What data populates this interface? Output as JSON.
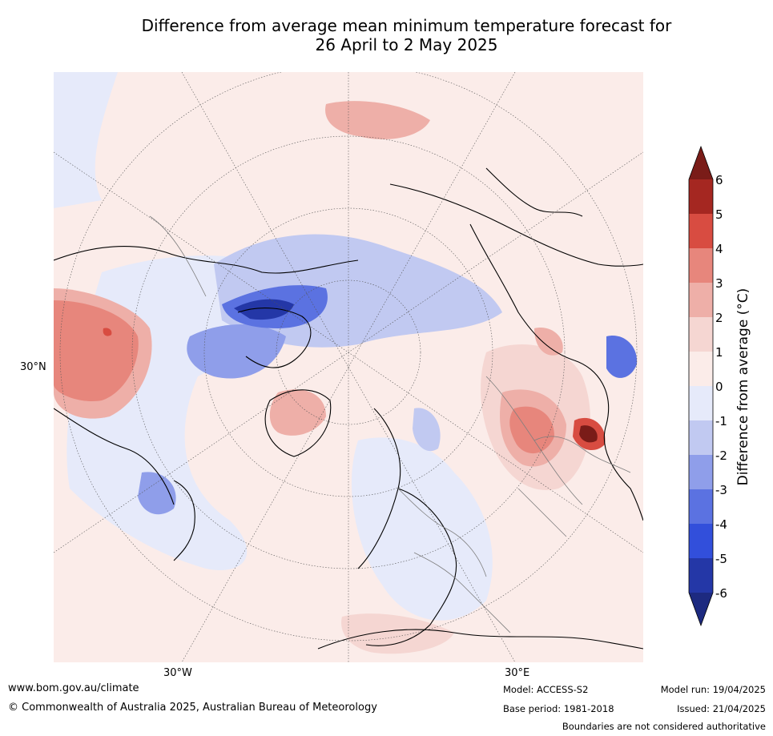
{
  "title_line1": "Difference from average mean minimum temperature forecast for",
  "title_line2": "26 April to 2 May 2025",
  "map": {
    "lat_label": "30°N",
    "lon_labels": [
      "30°W",
      "30°E"
    ]
  },
  "colorbar": {
    "label": "Difference from average (°C)",
    "ticks": [
      "6",
      "5",
      "4",
      "3",
      "2",
      "1",
      "0",
      "-1",
      "-2",
      "-3",
      "-4",
      "-5",
      "-6"
    ],
    "colors": {
      "gt6": "#7a1c18",
      "5_6": "#a52721",
      "4_5": "#d84c41",
      "3_4": "#e7867c",
      "2_3": "#eeafa8",
      "1_2": "#f5d6d2",
      "0_1": "#fbece9",
      "m1_0": "#e6eafa",
      "m2_m1": "#c1c9f1",
      "m3_m2": "#8f9eea",
      "m4_m3": "#5b72e1",
      "m5_m4": "#324fdb",
      "m6_m5": "#2437a7",
      "lt_m6": "#1d2a80"
    }
  },
  "footer": {
    "url": "www.bom.gov.au/climate",
    "copyright": "© Commonwealth of Australia 2025, Australian Bureau of Meteorology",
    "model": "Model: ACCESS-S2",
    "base_period": "Base period: 1981-2018",
    "model_run": "Model run: 19/04/2025",
    "issued": "Issued: 21/04/2025",
    "boundaries": "Boundaries are not considered authoritative"
  }
}
